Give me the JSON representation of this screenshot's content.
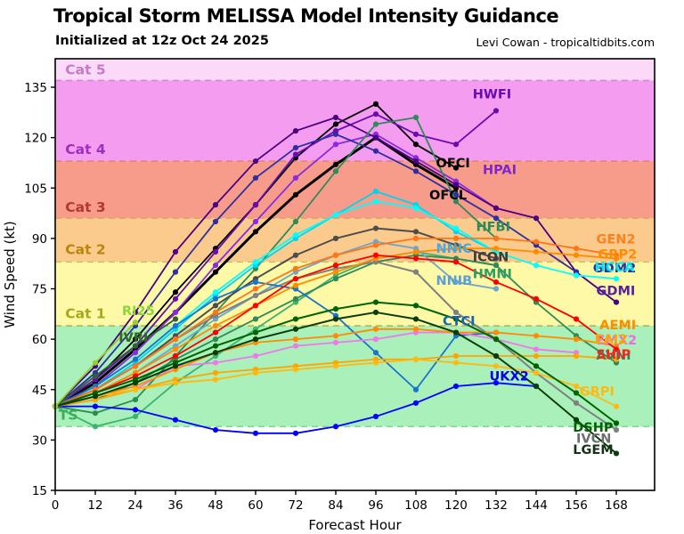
{
  "header": {
    "title": "Tropical Storm MELISSA Model Intensity Guidance",
    "subtitle": "Initialized at 12z Oct 24 2025",
    "credit": "Levi Cowan - tropicaltidbits.com"
  },
  "chart_data": {
    "type": "line",
    "title": "Tropical Storm MELISSA Model Intensity Guidance",
    "xlabel": "Forecast Hour",
    "ylabel": "Wind Speed (kt)",
    "x_step_hours": 12,
    "xlim": [
      0,
      179
    ],
    "ylim": [
      15,
      143.5
    ],
    "x_ticks": [
      0,
      12,
      24,
      36,
      48,
      60,
      72,
      84,
      96,
      108,
      120,
      132,
      144,
      156,
      168
    ],
    "y_ticks": [
      15,
      30,
      45,
      60,
      75,
      90,
      105,
      120,
      135
    ],
    "grid": false,
    "legend_position": "inline-labels-at-line-ends",
    "bands": [
      {
        "label": "Cat 5",
        "from": 137,
        "to": 143.5,
        "color": "#fbd9f9",
        "label_color": "#c77bc4",
        "label_h": 3,
        "label_kt": 140.2
      },
      {
        "label": "Cat 4",
        "from": 113,
        "to": 137,
        "color": "#f49cf0",
        "label_color": "#9e2fbe",
        "label_h": 3,
        "label_kt": 116.5
      },
      {
        "label": "Cat 3",
        "from": 96,
        "to": 113,
        "color": "#f79b8a",
        "label_color": "#b03a30",
        "label_h": 3,
        "label_kt": 99.2
      },
      {
        "label": "Cat 2",
        "from": 83,
        "to": 96,
        "color": "#fbca8d",
        "label_color": "#b8860b",
        "label_h": 3,
        "label_kt": 86.6
      },
      {
        "label": "Cat 1",
        "from": 64,
        "to": 83,
        "color": "#fdf9a6",
        "label_color": "#a8a81e",
        "label_h": 3,
        "label_kt": 67.6
      },
      {
        "label": "TS",
        "from": 34,
        "to": 64,
        "color": "#a9f0ba",
        "label_color": "#3fae57",
        "label_h": 1,
        "label_kt": 37.4
      }
    ],
    "thresholds": [
      {
        "kt": 137,
        "color": "#d985d6"
      },
      {
        "kt": 113,
        "color": "#e28478"
      },
      {
        "kt": 96,
        "color": "#dfa763"
      },
      {
        "kt": 83,
        "color": "#cfc06a"
      },
      {
        "kt": 64,
        "color": "#b3b852"
      },
      {
        "kt": 34,
        "color": "#7fd99a"
      }
    ],
    "series": [
      {
        "name": "OFCL",
        "color": "#000000",
        "width": 3.0,
        "values": [
          40,
          47,
          57,
          68,
          80,
          92,
          103,
          112,
          120,
          112,
          105
        ],
        "label_h": 112,
        "label_kt": 103,
        "label_color": "#000000"
      },
      {
        "name": "OFCI",
        "color": "#000000",
        "width": 1.8,
        "values": [
          40,
          48,
          60,
          74,
          87,
          100,
          114,
          124,
          130,
          118,
          111
        ],
        "label_h": 114,
        "label_kt": 112.5,
        "label_color": "#000000"
      },
      {
        "name": "HWFI",
        "color": "#6a0dad",
        "width": 1.8,
        "values": [
          40,
          48,
          58,
          72,
          86,
          100,
          115,
          122,
          127,
          121,
          118,
          128
        ],
        "label_h": 125,
        "label_kt": 133,
        "label_color": "#6a0dad"
      },
      {
        "name": "HPAI",
        "color": "#8a2be2",
        "width": 1.8,
        "values": [
          40,
          46,
          56,
          68,
          82,
          95,
          108,
          118,
          121,
          114,
          107,
          99
        ],
        "label_h": 128,
        "label_kt": 110.5,
        "label_color": "#7d26cd"
      },
      {
        "name": "GDMI",
        "color": "#4b0082",
        "width": 1.8,
        "values": [
          40,
          52,
          68,
          86,
          100,
          113,
          122,
          126,
          120,
          113,
          106,
          99,
          96,
          80,
          71
        ],
        "label_h": 162,
        "label_kt": 74.5,
        "label_color": "#5a1fa0"
      },
      {
        "name": "GDM2",
        "color": "#2f2f9e",
        "width": 1.8,
        "values": [
          40,
          50,
          64,
          80,
          95,
          108,
          117,
          121,
          116,
          110,
          103,
          96,
          88,
          80
        ],
        "label_h": 161,
        "label_kt": 81.2,
        "label_color": "#2f2f9e"
      },
      {
        "name": "HFBI",
        "color": "#2e8b57",
        "width": 1.8,
        "values": [
          40,
          38,
          42,
          55,
          68,
          81,
          95,
          110,
          124,
          126,
          101,
          90
        ],
        "label_h": 126,
        "label_kt": 93.5,
        "label_color": "#2e8b57"
      },
      {
        "name": "HMNI",
        "color": "#3cb371",
        "width": 1.8,
        "values": [
          40,
          34,
          37,
          47,
          55,
          63,
          71,
          79,
          84,
          86,
          84,
          82
        ],
        "label_h": 125,
        "label_kt": 79.5,
        "label_color": "#2e9e63"
      },
      {
        "name": "AVNI",
        "color": "#2e8b57",
        "width": 1.8,
        "values": [
          40,
          42,
          47,
          54,
          60,
          66,
          72,
          78,
          83,
          85,
          84,
          82,
          71,
          61,
          53
        ],
        "label_h": 162,
        "label_kt": 55.2,
        "label_color": "#2e8b57"
      },
      {
        "name": "NNIC",
        "color": "#00d5ee",
        "width": 1.8,
        "values": [
          40,
          45,
          53,
          63,
          73,
          82,
          90,
          97,
          104,
          100,
          92,
          86
        ],
        "label_h": 114,
        "label_kt": 87,
        "label_color": "#49a8de"
      },
      {
        "name": "NNIB",
        "color": "#6ca6cd",
        "width": 1.8,
        "values": [
          40,
          44,
          50,
          58,
          66,
          73,
          80,
          85,
          89,
          87,
          77,
          75
        ],
        "label_h": 114,
        "label_kt": 77.5,
        "label_color": "#5d9fd3"
      },
      {
        "name": "HCCA",
        "color": "#00ffff",
        "width": 1.8,
        "values": [
          40,
          46,
          54,
          64,
          74,
          83,
          91,
          97,
          101,
          99,
          93,
          86,
          82,
          79,
          78
        ],
        "label_h": 161.5,
        "label_kt": 81.5,
        "label_color": "#00e5ee"
      },
      {
        "name": "ICON",
        "color": "#4d4d4d",
        "width": 2.0,
        "values": [
          40,
          45,
          52,
          61,
          70,
          78,
          85,
          90,
          93,
          92,
          88,
          84
        ],
        "label_h": 125,
        "label_kt": 84.5,
        "label_color": "#3c3c3c"
      },
      {
        "name": "IVCN",
        "color": "#808080",
        "width": 2.0,
        "values": [
          40,
          45,
          52,
          60,
          67,
          73,
          78,
          81,
          83,
          80,
          68,
          60,
          50,
          41,
          33
        ],
        "label_h": 156,
        "label_kt": 30.5,
        "label_color": "#6e6e6e"
      },
      {
        "name": "CTCI",
        "color": "#1874cd",
        "width": 1.8,
        "values": [
          40,
          46,
          54,
          64,
          72,
          77,
          75,
          67,
          56,
          45,
          61,
          62
        ],
        "label_h": 116,
        "label_kt": 65.5,
        "label_color": "#1763b5"
      },
      {
        "name": "UKX2",
        "color": "#0000ff",
        "width": 1.8,
        "values": [
          40,
          40,
          39,
          36,
          33,
          32,
          32,
          34,
          37,
          41,
          46,
          47,
          46
        ],
        "label_h": 130,
        "label_kt": 49,
        "label_color": "#0000ee"
      },
      {
        "name": "EMX2",
        "color": "#ee7ae9",
        "width": 1.8,
        "values": [
          40,
          42,
          45,
          52,
          53,
          55,
          58,
          59,
          60,
          62,
          62,
          60,
          57,
          56
        ],
        "label_h": 162,
        "label_kt": 59.8,
        "label_color": "#ee6ae0"
      },
      {
        "name": "AEMI",
        "color": "#ff8c00",
        "width": 1.8,
        "values": [
          40,
          43,
          46,
          51,
          56,
          59,
          60,
          61,
          63,
          63,
          62,
          62,
          61,
          60,
          58
        ],
        "label_h": 163,
        "label_kt": 64.3,
        "label_color": "#ff8c00"
      },
      {
        "name": "EAI2",
        "color": "#ffa500",
        "width": 1.8,
        "values": [
          40,
          42,
          45,
          48,
          50,
          51,
          52,
          53,
          54,
          54,
          55,
          55,
          55,
          55,
          54
        ],
        "label_h": 161.5,
        "label_kt": 60,
        "label_color": "#ffa500"
      },
      {
        "name": "GEN2",
        "color": "#ff7518",
        "width": 1.8,
        "values": [
          40,
          45,
          52,
          60,
          68,
          75,
          81,
          85,
          88,
          90,
          90,
          90,
          89,
          87,
          85
        ],
        "label_h": 162,
        "label_kt": 89.8,
        "label_color": "#ff7f1e"
      },
      {
        "name": "GRP2",
        "color": "#ff8c00",
        "width": 1.8,
        "values": [
          40,
          44,
          50,
          57,
          64,
          70,
          76,
          80,
          84,
          86,
          87,
          87,
          86,
          85,
          84
        ],
        "label_h": 162.5,
        "label_kt": 85.3,
        "label_color": "#ff8c00"
      },
      {
        "name": "GRPI",
        "color": "#ffb90f",
        "width": 1.8,
        "values": [
          40,
          43,
          45,
          47,
          48,
          50,
          51,
          52,
          53,
          54,
          53,
          52,
          50,
          46,
          40
        ],
        "label_h": 157,
        "label_kt": 44.5,
        "label_color": "#ffb90f"
      },
      {
        "name": "SHIP",
        "color": "#ff0000",
        "width": 1.8,
        "values": [
          40,
          44,
          49,
          55,
          62,
          70,
          78,
          82,
          85,
          84,
          83,
          77,
          72,
          66,
          57
        ],
        "label_h": 162,
        "label_kt": 55.5,
        "label_color": "#ff2020"
      },
      {
        "name": "DSHP",
        "color": "#006400",
        "width": 2.0,
        "values": [
          40,
          44,
          48,
          53,
          58,
          62,
          66,
          69,
          71,
          70,
          66,
          60,
          52,
          44,
          35
        ],
        "label_h": 155,
        "label_kt": 33.8,
        "label_color": "#006400"
      },
      {
        "name": "LGEM",
        "color": "#0b3d0b",
        "width": 2.0,
        "values": [
          40,
          43,
          47,
          52,
          56,
          60,
          63,
          66,
          68,
          66,
          62,
          55,
          46,
          36,
          26
        ],
        "label_h": 155,
        "label_kt": 27.2,
        "label_color": "#173317"
      },
      {
        "name": "IVRI",
        "color": "#355e3b",
        "width": 1.8,
        "values": [
          40,
          49,
          58,
          66
        ],
        "label_h": 19,
        "label_kt": 60.5,
        "label_color": "#33691e"
      },
      {
        "name": "RI25",
        "color": "#9acd32",
        "width": 1.8,
        "values": [
          40,
          53,
          65
        ],
        "label_h": 20,
        "label_kt": 68.5,
        "label_color": "#8ed63a"
      }
    ]
  }
}
